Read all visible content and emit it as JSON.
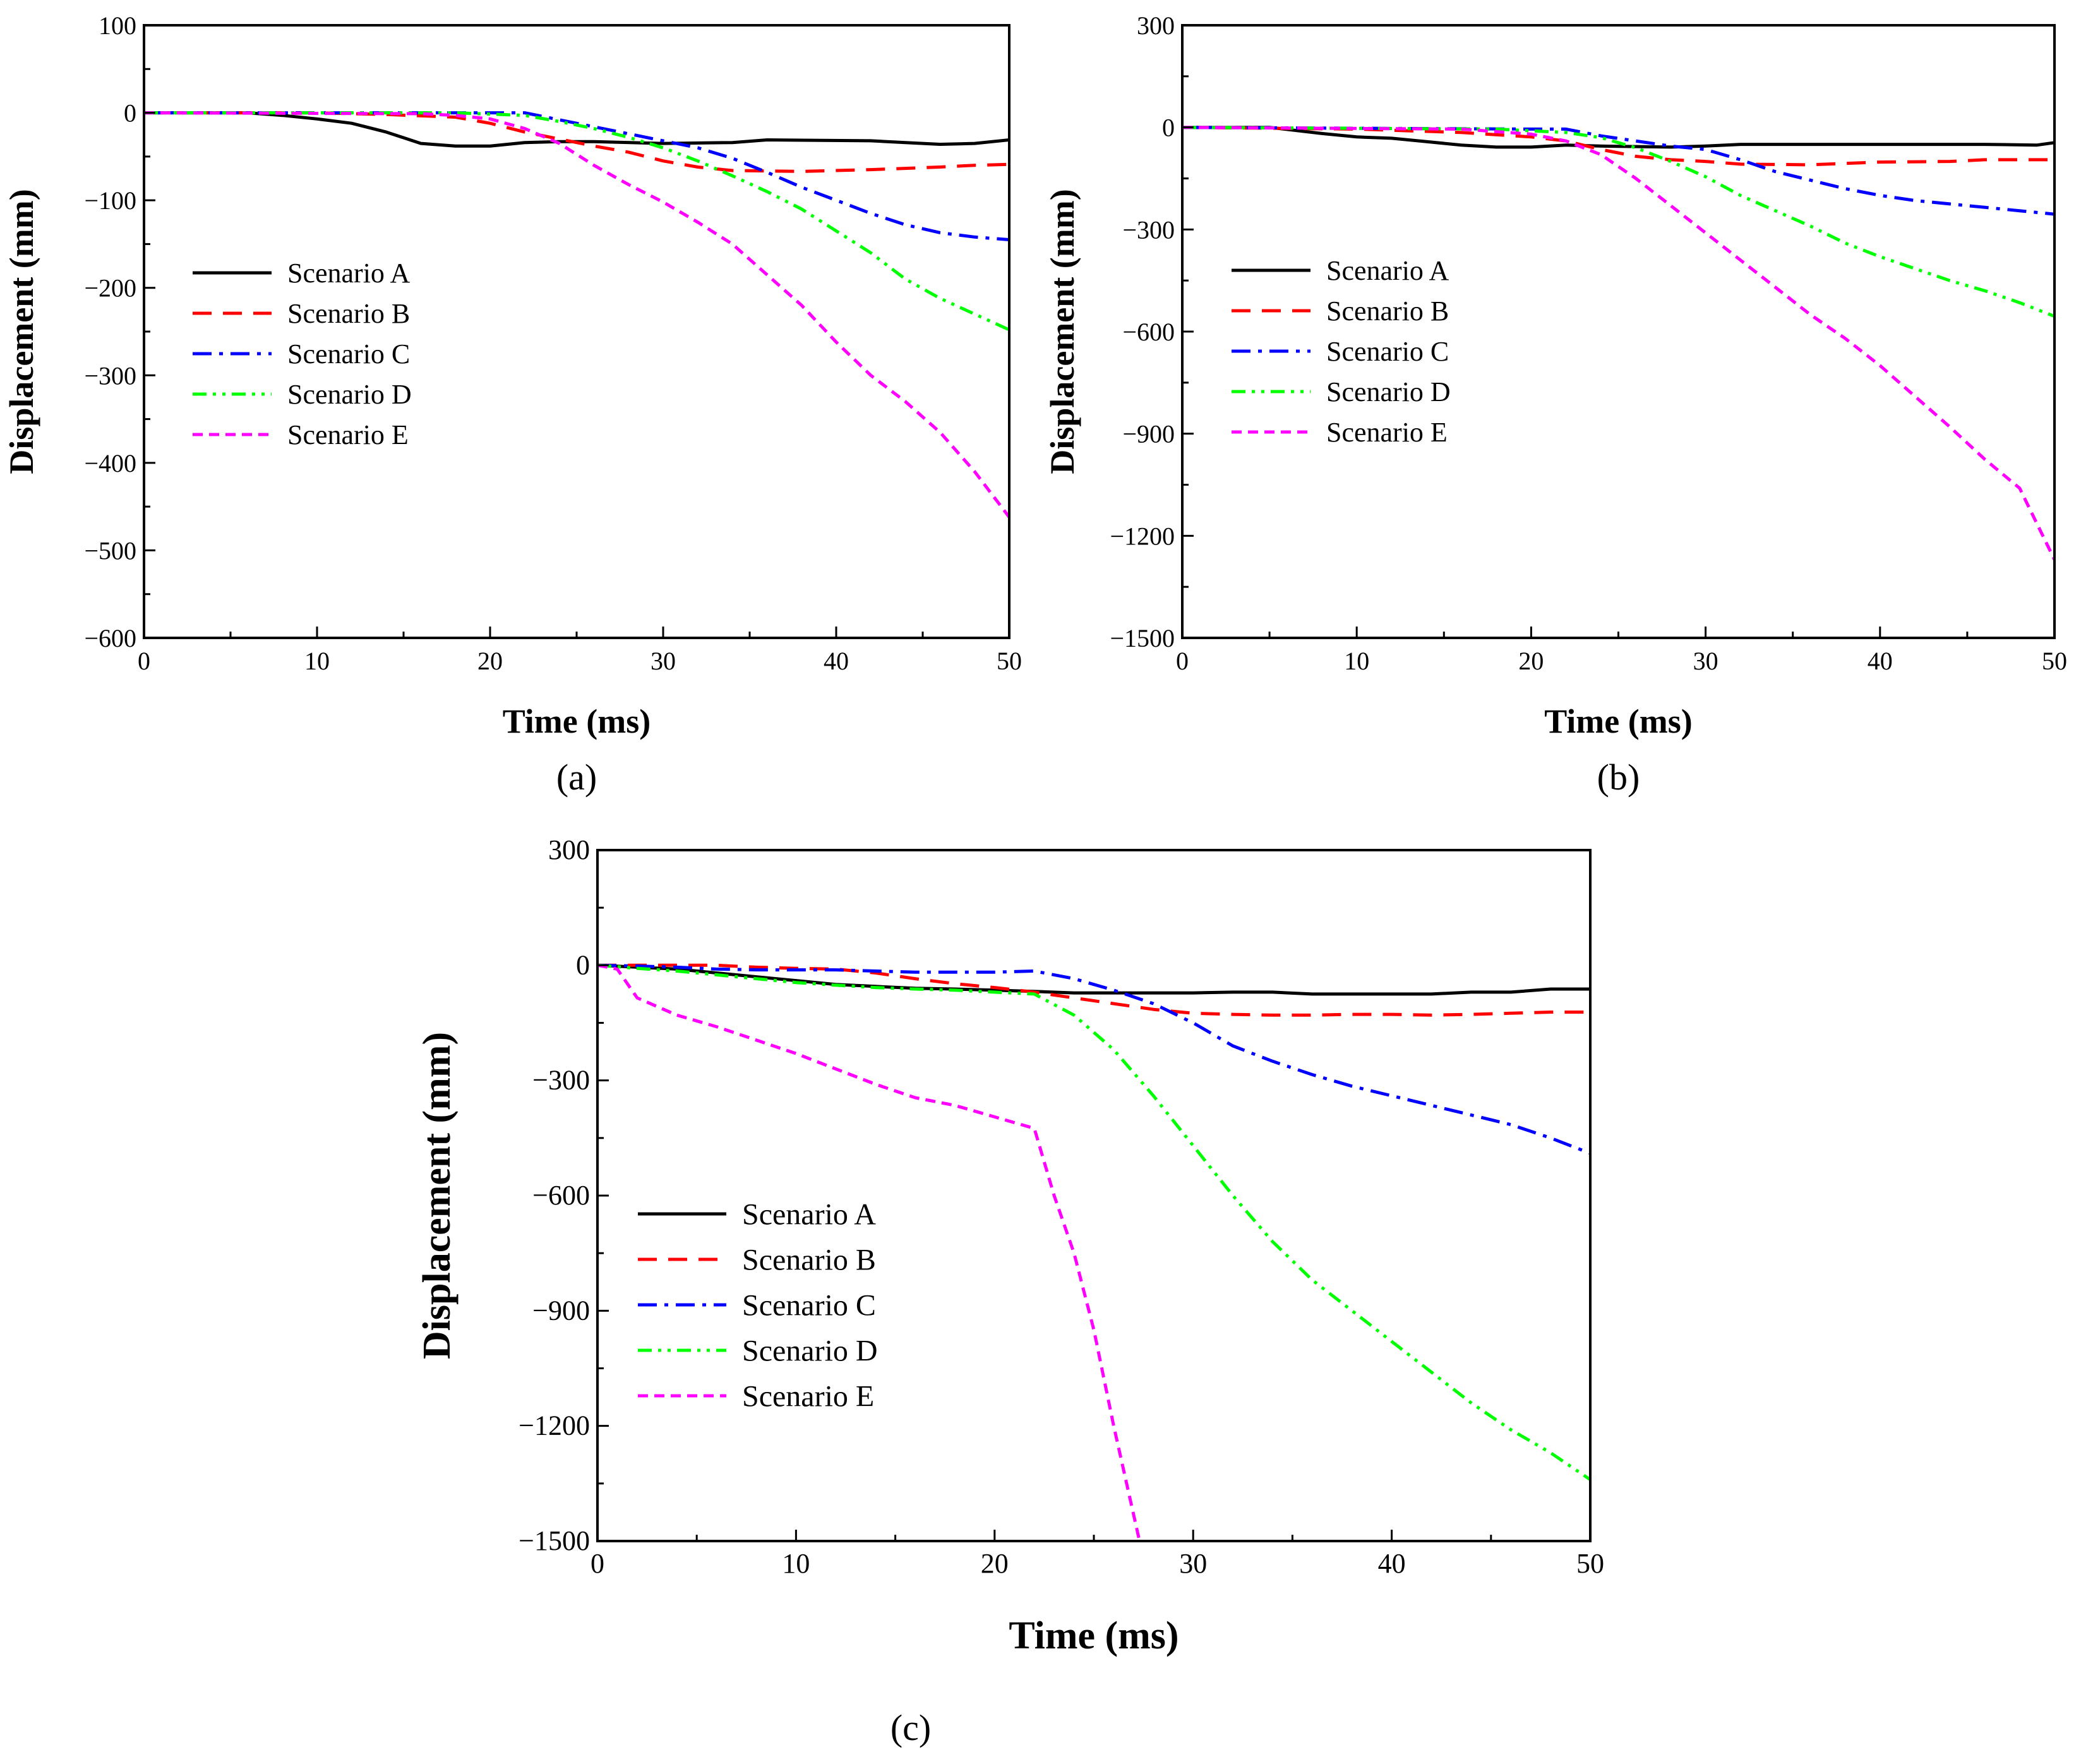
{
  "chart_data": [
    {
      "type": "line",
      "panel_label": "(a)",
      "xlabel": "Time (ms)",
      "ylabel": "Displacement (mm)",
      "xlim": [
        0,
        50
      ],
      "ylim": [
        -600,
        100
      ],
      "xticks": [
        0,
        10,
        20,
        30,
        40,
        50
      ],
      "xtick_labels": [
        "0",
        "10",
        "20",
        "30",
        "40",
        "50"
      ],
      "yticks": [
        100,
        0,
        -100,
        -200,
        -300,
        -400,
        -500,
        -600
      ],
      "ytick_labels": [
        "100",
        "0",
        "−100",
        "−200",
        "−300",
        "−400",
        "−500",
        "−600"
      ],
      "grid": false,
      "legend_position": "center-left",
      "series": [
        {
          "name": "Scenario A",
          "color": "#000000",
          "dash": "solid",
          "x": [
            0,
            6,
            8,
            10,
            12,
            14,
            16,
            18,
            20,
            22,
            24,
            26,
            30,
            34,
            36,
            42,
            44,
            46,
            48,
            50
          ],
          "y": [
            0,
            0,
            -3,
            -7,
            -12,
            -22,
            -35,
            -38,
            -38,
            -34,
            -33,
            -33,
            -35,
            -34,
            -31,
            -32,
            -34,
            -36,
            -35,
            -31
          ]
        },
        {
          "name": "Scenario B",
          "color": "#ff0000",
          "dash": "long-dash",
          "x": [
            0,
            10,
            14,
            18,
            20,
            22,
            24,
            26,
            28,
            30,
            32,
            34,
            38,
            42,
            46,
            48,
            50
          ],
          "y": [
            0,
            0,
            -2,
            -5,
            -12,
            -22,
            -30,
            -38,
            -45,
            -55,
            -62,
            -66,
            -67,
            -65,
            -62,
            -60,
            -59
          ]
        },
        {
          "name": "Scenario C",
          "color": "#0000ff",
          "dash": "dash-dot",
          "x": [
            0,
            22,
            24,
            26,
            28,
            30,
            32,
            34,
            36,
            38,
            40,
            42,
            44,
            46,
            48,
            50
          ],
          "y": [
            0,
            0,
            -8,
            -16,
            -24,
            -32,
            -40,
            -52,
            -68,
            -85,
            -100,
            -115,
            -128,
            -137,
            -142,
            -145
          ]
        },
        {
          "name": "Scenario D",
          "color": "#00ff00",
          "dash": "dash-dot-dot",
          "x": [
            0,
            18,
            22,
            24,
            26,
            28,
            30,
            32,
            34,
            36,
            38,
            40,
            42,
            44,
            46,
            48,
            50
          ],
          "y": [
            0,
            0,
            -3,
            -10,
            -18,
            -28,
            -40,
            -55,
            -72,
            -90,
            -110,
            -135,
            -160,
            -190,
            -212,
            -230,
            -248
          ]
        },
        {
          "name": "Scenario E",
          "color": "#ff00ff",
          "dash": "short-dash",
          "x": [
            0,
            16,
            18,
            20,
            22,
            24,
            26,
            28,
            30,
            32,
            34,
            36,
            38,
            40,
            42,
            44,
            46,
            48,
            50
          ],
          "y": [
            0,
            -1,
            -3,
            -7,
            -18,
            -35,
            -60,
            -82,
            -102,
            -125,
            -150,
            -185,
            -220,
            -262,
            -300,
            -330,
            -365,
            -410,
            -462
          ]
        }
      ]
    },
    {
      "type": "line",
      "panel_label": "(b)",
      "xlabel": "Time (ms)",
      "ylabel": "Displacement (mm)",
      "xlim": [
        0,
        50
      ],
      "ylim": [
        -1500,
        300
      ],
      "xticks": [
        0,
        10,
        20,
        30,
        40,
        50
      ],
      "xtick_labels": [
        "0",
        "10",
        "20",
        "30",
        "40",
        "50"
      ],
      "yticks": [
        300,
        0,
        -300,
        -600,
        -900,
        -1200,
        -1500
      ],
      "ytick_labels": [
        "300",
        "0",
        "−300",
        "−600",
        "−900",
        "−1200",
        "−1500"
      ],
      "grid": false,
      "legend_position": "center-left",
      "series": [
        {
          "name": "Scenario A",
          "color": "#000000",
          "dash": "solid",
          "x": [
            0,
            5,
            8,
            10,
            12,
            14,
            16,
            18,
            20,
            22,
            24,
            28,
            30,
            32,
            40,
            46,
            49,
            50
          ],
          "y": [
            0,
            0,
            -18,
            -28,
            -32,
            -42,
            -52,
            -58,
            -58,
            -52,
            -55,
            -58,
            -55,
            -50,
            -50,
            -50,
            -52,
            -45
          ]
        },
        {
          "name": "Scenario B",
          "color": "#ff0000",
          "dash": "long-dash",
          "x": [
            0,
            10,
            16,
            20,
            22,
            24,
            26,
            28,
            30,
            32,
            36,
            40,
            44,
            46,
            48,
            50
          ],
          "y": [
            0,
            -5,
            -15,
            -28,
            -40,
            -65,
            -85,
            -95,
            -100,
            -108,
            -110,
            -102,
            -100,
            -95,
            -95,
            -95
          ]
        },
        {
          "name": "Scenario C",
          "color": "#0000ff",
          "dash": "dash-dot",
          "x": [
            0,
            20,
            22,
            24,
            26,
            28,
            30,
            32,
            34,
            36,
            38,
            40,
            42,
            44,
            46,
            48,
            50
          ],
          "y": [
            0,
            -5,
            -5,
            -25,
            -40,
            -55,
            -65,
            -95,
            -130,
            -155,
            -180,
            -200,
            -215,
            -225,
            -235,
            -245,
            -255
          ]
        },
        {
          "name": "Scenario D",
          "color": "#00ff00",
          "dash": "dash-dot-dot",
          "x": [
            0,
            18,
            22,
            24,
            26,
            28,
            30,
            32,
            34,
            36,
            38,
            40,
            42,
            44,
            46,
            48,
            50
          ],
          "y": [
            0,
            -5,
            -15,
            -30,
            -60,
            -100,
            -145,
            -200,
            -245,
            -290,
            -340,
            -380,
            -415,
            -450,
            -480,
            -515,
            -555
          ]
        },
        {
          "name": "Scenario E",
          "color": "#ff00ff",
          "dash": "short-dash",
          "x": [
            0,
            16,
            20,
            22,
            24,
            26,
            28,
            30,
            32,
            34,
            36,
            38,
            40,
            42,
            44,
            46,
            48,
            50
          ],
          "y": [
            0,
            -5,
            -20,
            -40,
            -80,
            -150,
            -230,
            -310,
            -390,
            -470,
            -550,
            -620,
            -700,
            -790,
            -880,
            -975,
            -1060,
            -1270
          ]
        }
      ]
    },
    {
      "type": "line",
      "panel_label": "(c)",
      "xlabel": "Time (ms)",
      "ylabel": "Displacement (mm)",
      "xlim": [
        0,
        50
      ],
      "ylim": [
        -1500,
        300
      ],
      "xticks": [
        0,
        10,
        20,
        30,
        40,
        50
      ],
      "xtick_labels": [
        "0",
        "10",
        "20",
        "30",
        "40",
        "50"
      ],
      "yticks": [
        300,
        0,
        -300,
        -600,
        -900,
        -1200,
        -1500
      ],
      "ytick_labels": [
        "300",
        "0",
        "−300",
        "−600",
        "−900",
        "−1200",
        "−1500"
      ],
      "grid": false,
      "legend_position": "bottom-left",
      "series": [
        {
          "name": "Scenario A",
          "color": "#000000",
          "dash": "solid",
          "x": [
            0,
            2,
            4,
            6,
            8,
            10,
            12,
            14,
            16,
            18,
            20,
            22,
            24,
            26,
            28,
            30,
            32,
            34,
            36,
            38,
            42,
            44,
            46,
            48,
            50
          ],
          "y": [
            0,
            -5,
            -10,
            -20,
            -30,
            -40,
            -50,
            -55,
            -60,
            -62,
            -65,
            -68,
            -72,
            -72,
            -72,
            -72,
            -70,
            -70,
            -75,
            -75,
            -75,
            -70,
            -70,
            -62,
            -62
          ]
        },
        {
          "name": "Scenario B",
          "color": "#ff0000",
          "dash": "long-dash",
          "x": [
            0,
            6,
            8,
            10,
            12,
            14,
            16,
            18,
            20,
            22,
            24,
            26,
            28,
            30,
            32,
            34,
            36,
            38,
            40,
            42,
            44,
            46,
            48,
            50
          ],
          "y": [
            0,
            0,
            -5,
            -8,
            -10,
            -20,
            -35,
            -48,
            -58,
            -70,
            -85,
            -100,
            -115,
            -125,
            -128,
            -130,
            -130,
            -128,
            -128,
            -130,
            -128,
            -125,
            -122,
            -122
          ]
        },
        {
          "name": "Scenario C",
          "color": "#0000ff",
          "dash": "dash-dot",
          "x": [
            0,
            2,
            4,
            6,
            8,
            10,
            12,
            14,
            16,
            18,
            20,
            22,
            24,
            26,
            28,
            30,
            32,
            34,
            36,
            38,
            40,
            42,
            44,
            46,
            48,
            50
          ],
          "y": [
            0,
            -2,
            -5,
            -10,
            -12,
            -12,
            -12,
            -15,
            -18,
            -18,
            -18,
            -15,
            -35,
            -65,
            -100,
            -150,
            -210,
            -250,
            -285,
            -315,
            -340,
            -365,
            -390,
            -415,
            -450,
            -490
          ]
        },
        {
          "name": "Scenario D",
          "color": "#00ff00",
          "dash": "dash-dot-dot",
          "x": [
            0,
            2,
            4,
            6,
            8,
            10,
            12,
            14,
            16,
            18,
            20,
            22,
            24,
            26,
            28,
            30,
            32,
            34,
            36,
            38,
            40,
            42,
            44,
            46,
            48,
            50
          ],
          "y": [
            0,
            -8,
            -15,
            -25,
            -35,
            -45,
            -52,
            -58,
            -62,
            -65,
            -70,
            -75,
            -130,
            -220,
            -340,
            -470,
            -600,
            -720,
            -820,
            -900,
            -980,
            -1060,
            -1140,
            -1210,
            -1270,
            -1340
          ]
        },
        {
          "name": "Scenario E",
          "color": "#ff00ff",
          "dash": "short-dash",
          "x": [
            0,
            1,
            2,
            4,
            6,
            8,
            10,
            12,
            14,
            16,
            18,
            20,
            22,
            23,
            24,
            25,
            26,
            27.3
          ],
          "y": [
            0,
            -10,
            -85,
            -130,
            -160,
            -195,
            -230,
            -270,
            -310,
            -345,
            -365,
            -395,
            -425,
            -600,
            -750,
            -950,
            -1200,
            -1500
          ]
        }
      ]
    }
  ]
}
